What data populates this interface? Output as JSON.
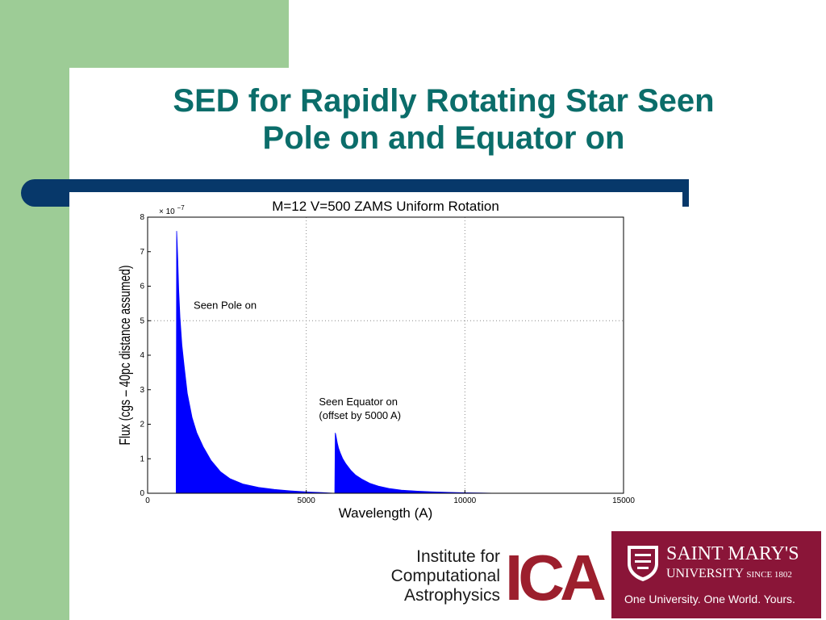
{
  "slide": {
    "title_line1": "SED for Rapidly Rotating Star Seen",
    "title_line2": "Pole on and Equator on",
    "colors": {
      "title": "#0b6d6a",
      "rule": "#07386a",
      "accent_green": "#9dcc96",
      "series": "#0000ff"
    }
  },
  "chart_data": {
    "type": "area",
    "title": "M=12  V=500  ZAMS  Uniform Rotation",
    "xlabel": "Wavelength (A)",
    "ylabel": "Flux (cgs – 40pc distance assumed)",
    "y_multiplier": "× 10",
    "y_multiplier_exp": "−7",
    "xlim": [
      0,
      15000
    ],
    "ylim": [
      0,
      8
    ],
    "xticks": [
      0,
      5000,
      10000,
      15000
    ],
    "xtick_labels": [
      "0",
      "5000",
      "10000",
      "15000"
    ],
    "yticks": [
      0,
      1,
      2,
      3,
      4,
      5,
      6,
      7,
      8
    ],
    "ytick_labels": [
      "0",
      "1",
      "2",
      "3",
      "4",
      "5",
      "6",
      "7",
      "8"
    ],
    "grid": "dotted",
    "series": [
      {
        "x": [
          900,
          915,
          930,
          950,
          980,
          1020,
          1080,
          1150,
          1250,
          1400,
          1550,
          1750,
          2000,
          2300,
          2600,
          3000,
          3500,
          4000,
          4500,
          5000,
          5500,
          5900
        ],
        "y": [
          0,
          7.6,
          7.3,
          6.8,
          5.9,
          5.1,
          4.3,
          3.7,
          2.9,
          2.2,
          1.75,
          1.35,
          0.95,
          0.62,
          0.42,
          0.27,
          0.17,
          0.11,
          0.07,
          0.04,
          0.02,
          0.0
        ]
      },
      {
        "x": [
          5900,
          5915,
          5930,
          5950,
          5980,
          6020,
          6080,
          6150,
          6250,
          6400,
          6550,
          6750,
          7000,
          7300,
          7600,
          8000,
          8500,
          9000,
          9500,
          10000,
          10500,
          11000
        ],
        "y": [
          0,
          1.75,
          1.7,
          1.6,
          1.45,
          1.3,
          1.15,
          1.0,
          0.85,
          0.67,
          0.53,
          0.41,
          0.29,
          0.2,
          0.14,
          0.09,
          0.06,
          0.04,
          0.025,
          0.015,
          0.008,
          0.0
        ]
      }
    ],
    "annotations": [
      {
        "text": "Seen Pole on",
        "x": 1450,
        "y": 5.35
      },
      {
        "text": "Seen Equator on",
        "x": 5400,
        "y": 2.55
      },
      {
        "text": "(offset by 5000 A)",
        "x": 5400,
        "y": 2.15
      }
    ]
  },
  "logos": {
    "ica_line1": "Institute for",
    "ica_line2": "Computational",
    "ica_line3": "Astrophysics",
    "ica_mark": "ICA",
    "smu_name": "SAINT MARY'S",
    "smu_university": "UNIVERSITY",
    "smu_since": "SINCE 1802",
    "smu_tagline": "One University. One World. Yours."
  }
}
